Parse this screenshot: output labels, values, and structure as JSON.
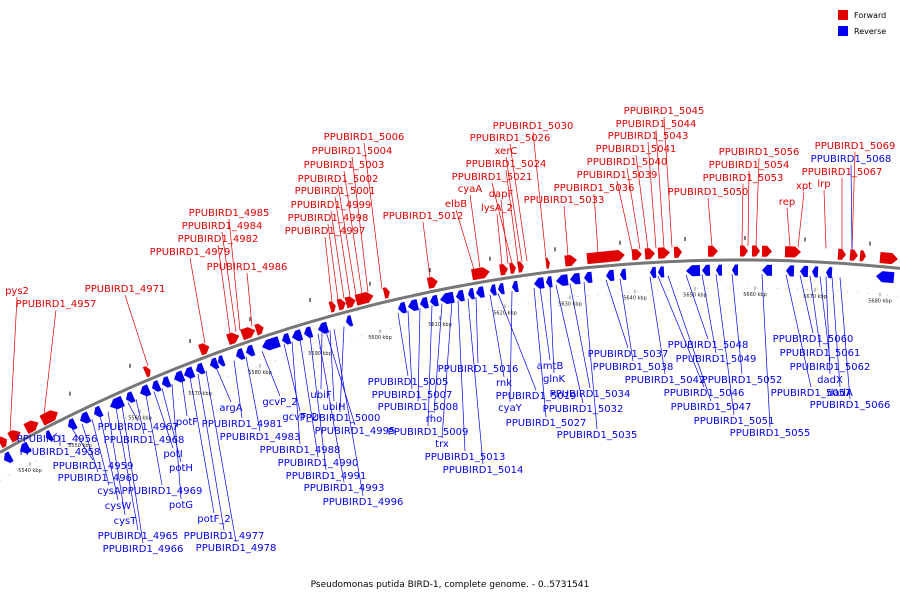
{
  "legend": {
    "forward": {
      "label": "Forward",
      "color": "#e00000"
    },
    "reverse": {
      "label": "Reverse",
      "color": "#0000ee"
    }
  },
  "caption": "Pseudomonas putida BIRD-1, complete genome. - 0..5731541",
  "ticks": [
    "5540 kbp",
    "5550 kbp",
    "5560 kbp",
    "5570 kbp",
    "5580 kbp",
    "5590 kbp",
    "5600 kbp",
    "5610 kbp",
    "5620 kbp",
    "5630 kbp",
    "5640 kbp",
    "5650 kbp",
    "5660 kbp",
    "5670 kbp",
    "5680 kbp"
  ],
  "forward_labels": [
    "pys2",
    "PPUBIRD1_4957",
    "PPUBIRD1_4971",
    "PPUBIRD1_4979",
    "PPUBIRD1_4982",
    "PPUBIRD1_4984",
    "PPUBIRD1_4985",
    "PPUBIRD1_4986",
    "PPUBIRD1_4997",
    "PPUBIRD1_4998",
    "PPUBIRD1_4999",
    "PPUBIRD1_5001",
    "PPUBIRD1_5002",
    "PPUBIRD1_5003",
    "PPUBIRD1_5004",
    "PPUBIRD1_5006",
    "PPUBIRD1_5012",
    "elbB",
    "cyaA",
    "lysA_2",
    "dapF",
    "PPUBIRD1_5021",
    "PPUBIRD1_5024",
    "xerC",
    "PPUBIRD1_5026",
    "PPUBIRD1_5030",
    "PPUBIRD1_5033",
    "PPUBIRD1_5036",
    "PPUBIRD1_5039",
    "PPUBIRD1_5040",
    "PPUBIRD1_5041",
    "PPUBIRD1_5043",
    "PPUBIRD1_5044",
    "PPUBIRD1_5045",
    "PPUBIRD1_5050",
    "PPUBIRD1_5053",
    "PPUBIRD1_5054",
    "PPUBIRD1_5056",
    "rep",
    "xpt",
    "lrp",
    "PPUBIRD1_5067",
    "PPUBIRD1_5069"
  ],
  "reverse_labels": [
    "PPUBIRD1_4956",
    "PPUBIRD1_4958",
    "PPUBIRD1_4959",
    "PPUBIRD1_4960",
    "cysA",
    "cysW",
    "cysT",
    "PPUBIRD1_4965",
    "PPUBIRD1_4966",
    "PPUBIRD1_4967",
    "PPUBIRD1_4968",
    "PPUBIRD1_4969",
    "potI",
    "potH",
    "potG",
    "potF",
    "potF_2",
    "PPUBIRD1_4977",
    "PPUBIRD1_4978",
    "argA",
    "PPUBIRD1_4981",
    "PPUBIRD1_4983",
    "gcvP_2",
    "gcvT_2",
    "PPUBIRD1_4988",
    "PPUBIRD1_4990",
    "PPUBIRD1_4991",
    "PPUBIRD1_4993",
    "PPUBIRD1_4995",
    "PPUBIRD1_4996",
    "ubiF",
    "ubiH",
    "PPUBIRD1_5000",
    "PPUBIRD1_5005",
    "PPUBIRD1_5007",
    "PPUBIRD1_5008",
    "PPUBIRD1_5009",
    "rho",
    "trx",
    "PPUBIRD1_5013",
    "PPUBIRD1_5014",
    "PPUBIRD1_5016",
    "rnk",
    "PPUBIRD1_5019",
    "cyaY",
    "PPUBIRD1_5027",
    "amtB",
    "glnK",
    "PPUBIRD1_5032",
    "PPUBIRD1_5034",
    "PPUBIRD1_5035",
    "PPUBIRD1_5037",
    "PPUBIRD1_5038",
    "PPUBIRD1_5042",
    "PPUBIRD1_5046",
    "PPUBIRD1_5047",
    "PPUBIRD1_5048",
    "PPUBIRD1_5049",
    "PPUBIRD1_5051",
    "PPUBIRD1_5052",
    "PPUBIRD1_5055",
    "PPUBIRD1_5057",
    "PPUBIRD1_5060",
    "PPUBIRD1_5061",
    "PPUBIRD1_5062",
    "dadX",
    "dadA",
    "PPUBIRD1_5066",
    "PPUBIRD1_5068"
  ]
}
